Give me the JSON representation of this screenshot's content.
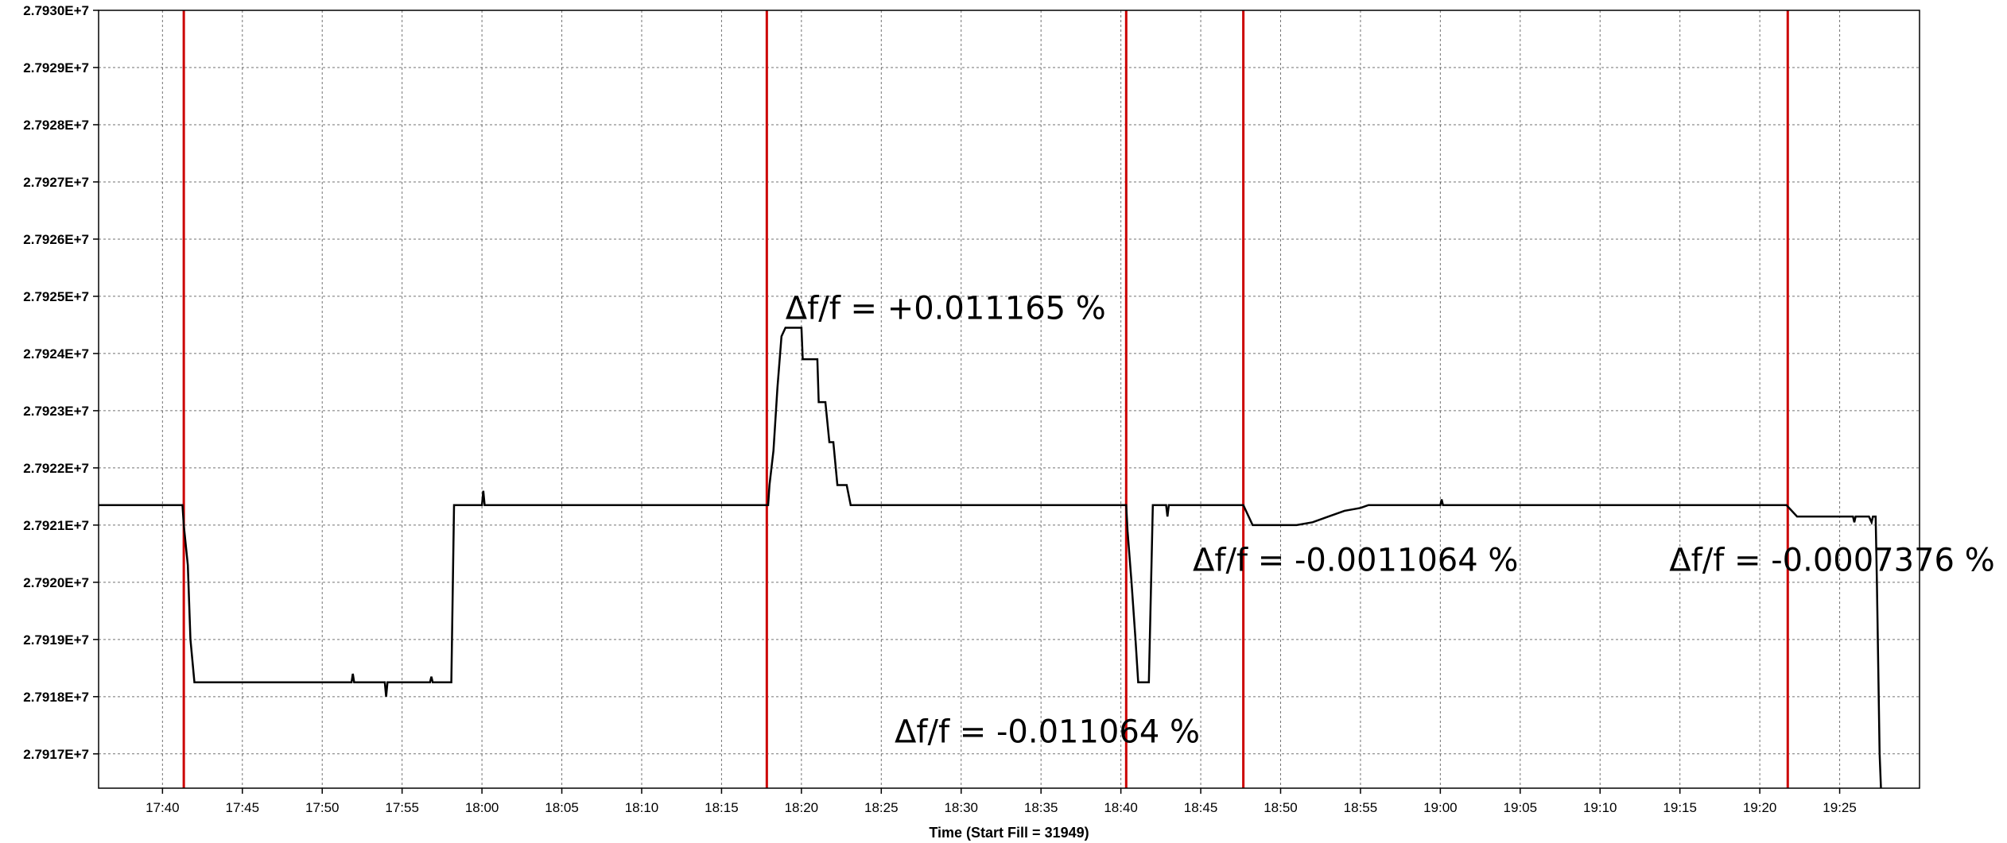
{
  "chart_data": {
    "type": "line",
    "xlabel": "Time (Start Fill = 31949)",
    "ylabel": "",
    "x_unit": "time of day (HH:MM)",
    "xlim": [
      "17:36:00",
      "19:30:00"
    ],
    "ylim": [
      27916400,
      27930000
    ],
    "x_ticks": [
      "17:40",
      "17:45",
      "17:50",
      "17:55",
      "18:00",
      "18:05",
      "18:10",
      "18:15",
      "18:20",
      "18:25",
      "18:30",
      "18:35",
      "18:40",
      "18:45",
      "18:50",
      "18:55",
      "19:00",
      "19:05",
      "19:10",
      "19:15",
      "19:20",
      "19:25"
    ],
    "y_ticks": [
      "2.7917E+7",
      "2.7918E+7",
      "2.7919E+7",
      "2.7920E+7",
      "2.7921E+7",
      "2.7922E+7",
      "2.7923E+7",
      "2.7924E+7",
      "2.7925E+7",
      "2.7926E+7",
      "2.7927E+7",
      "2.7928E+7",
      "2.7929E+7",
      "2.7930E+7"
    ],
    "y_tick_values": [
      27917000,
      27918000,
      27919000,
      27920000,
      27921000,
      27922000,
      27923000,
      27924000,
      27925000,
      27926000,
      27927000,
      27928000,
      27929000,
      27930000
    ],
    "grid": true,
    "series": [
      {
        "color": "#000000",
        "step": true,
        "points": [
          [
            "17:36:00",
            27921350
          ],
          [
            "17:41:15",
            27921350
          ],
          [
            "17:41:20",
            27921000
          ],
          [
            "17:41:35",
            27920300
          ],
          [
            "17:41:45",
            27919000
          ],
          [
            "17:42:00",
            27918250
          ],
          [
            "17:51:50",
            27918250
          ],
          [
            "17:51:55",
            27918400
          ],
          [
            "17:52:00",
            27918250
          ],
          [
            "17:53:55",
            27918250
          ],
          [
            "17:54:00",
            27918000
          ],
          [
            "17:54:05",
            27918250
          ],
          [
            "17:56:45",
            27918250
          ],
          [
            "17:56:50",
            27918350
          ],
          [
            "17:56:55",
            27918250
          ],
          [
            "17:58:05",
            27918250
          ],
          [
            "17:58:15",
            27921350
          ],
          [
            "18:00:00",
            27921350
          ],
          [
            "18:00:05",
            27921600
          ],
          [
            "18:00:10",
            27921350
          ],
          [
            "18:17:55",
            27921350
          ],
          [
            "18:18:00",
            27921700
          ],
          [
            "18:18:15",
            27922300
          ],
          [
            "18:18:30",
            27923400
          ],
          [
            "18:18:45",
            27924300
          ],
          [
            "18:19:00",
            27924450
          ],
          [
            "18:20:00",
            27924450
          ],
          [
            "18:20:05",
            27923900
          ],
          [
            "18:21:00",
            27923900
          ],
          [
            "18:21:05",
            27923150
          ],
          [
            "18:21:30",
            27923150
          ],
          [
            "18:21:45",
            27922450
          ],
          [
            "18:22:00",
            27922450
          ],
          [
            "18:22:15",
            27921700
          ],
          [
            "18:22:50",
            27921700
          ],
          [
            "18:23:05",
            27921350
          ],
          [
            "18:40:20",
            27921350
          ],
          [
            "18:40:25",
            27920900
          ],
          [
            "18:40:40",
            27920000
          ],
          [
            "18:40:55",
            27919000
          ],
          [
            "18:41:05",
            27918250
          ],
          [
            "18:41:45",
            27918250
          ],
          [
            "18:42:00",
            27921350
          ],
          [
            "18:42:50",
            27921350
          ],
          [
            "18:42:55",
            27921150
          ],
          [
            "18:43:00",
            27921350
          ],
          [
            "18:47:40",
            27921350
          ],
          [
            "18:48:00",
            27921150
          ],
          [
            "18:48:15",
            27921000
          ],
          [
            "18:51:00",
            27921000
          ],
          [
            "18:52:00",
            27921050
          ],
          [
            "18:53:00",
            27921150
          ],
          [
            "18:54:00",
            27921250
          ],
          [
            "18:55:00",
            27921300
          ],
          [
            "18:55:30",
            27921350
          ],
          [
            "19:00:00",
            27921350
          ],
          [
            "19:00:05",
            27921450
          ],
          [
            "19:00:10",
            27921350
          ],
          [
            "19:21:40",
            27921350
          ],
          [
            "19:22:20",
            27921150
          ],
          [
            "19:25:50",
            27921150
          ],
          [
            "19:25:55",
            27921050
          ],
          [
            "19:26:00",
            27921150
          ],
          [
            "19:26:50",
            27921150
          ],
          [
            "19:27:00",
            27921050
          ],
          [
            "19:27:05",
            27921150
          ],
          [
            "19:27:15",
            27921150
          ],
          [
            "19:27:20",
            27920000
          ],
          [
            "19:27:30",
            27917000
          ],
          [
            "19:27:35",
            27916400
          ]
        ]
      }
    ],
    "markers": {
      "color": "#cc0000",
      "x": [
        "17:41:20",
        "18:17:50",
        "18:40:20",
        "18:47:40",
        "19:21:45"
      ]
    },
    "annotations": [
      {
        "text": "Δf/f = +0.011165 %",
        "x": "18:19:00",
        "y": 27924600
      },
      {
        "text": "Δf/f = -0.011064 %",
        "x": "18:25:50",
        "y": 27917200
      },
      {
        "text": "Δf/f = -0.0011064 %",
        "x": "18:44:30",
        "y": 27920200
      },
      {
        "text": "Δf/f = -0.0007376 %",
        "x": "19:14:20",
        "y": 27920200
      }
    ]
  }
}
